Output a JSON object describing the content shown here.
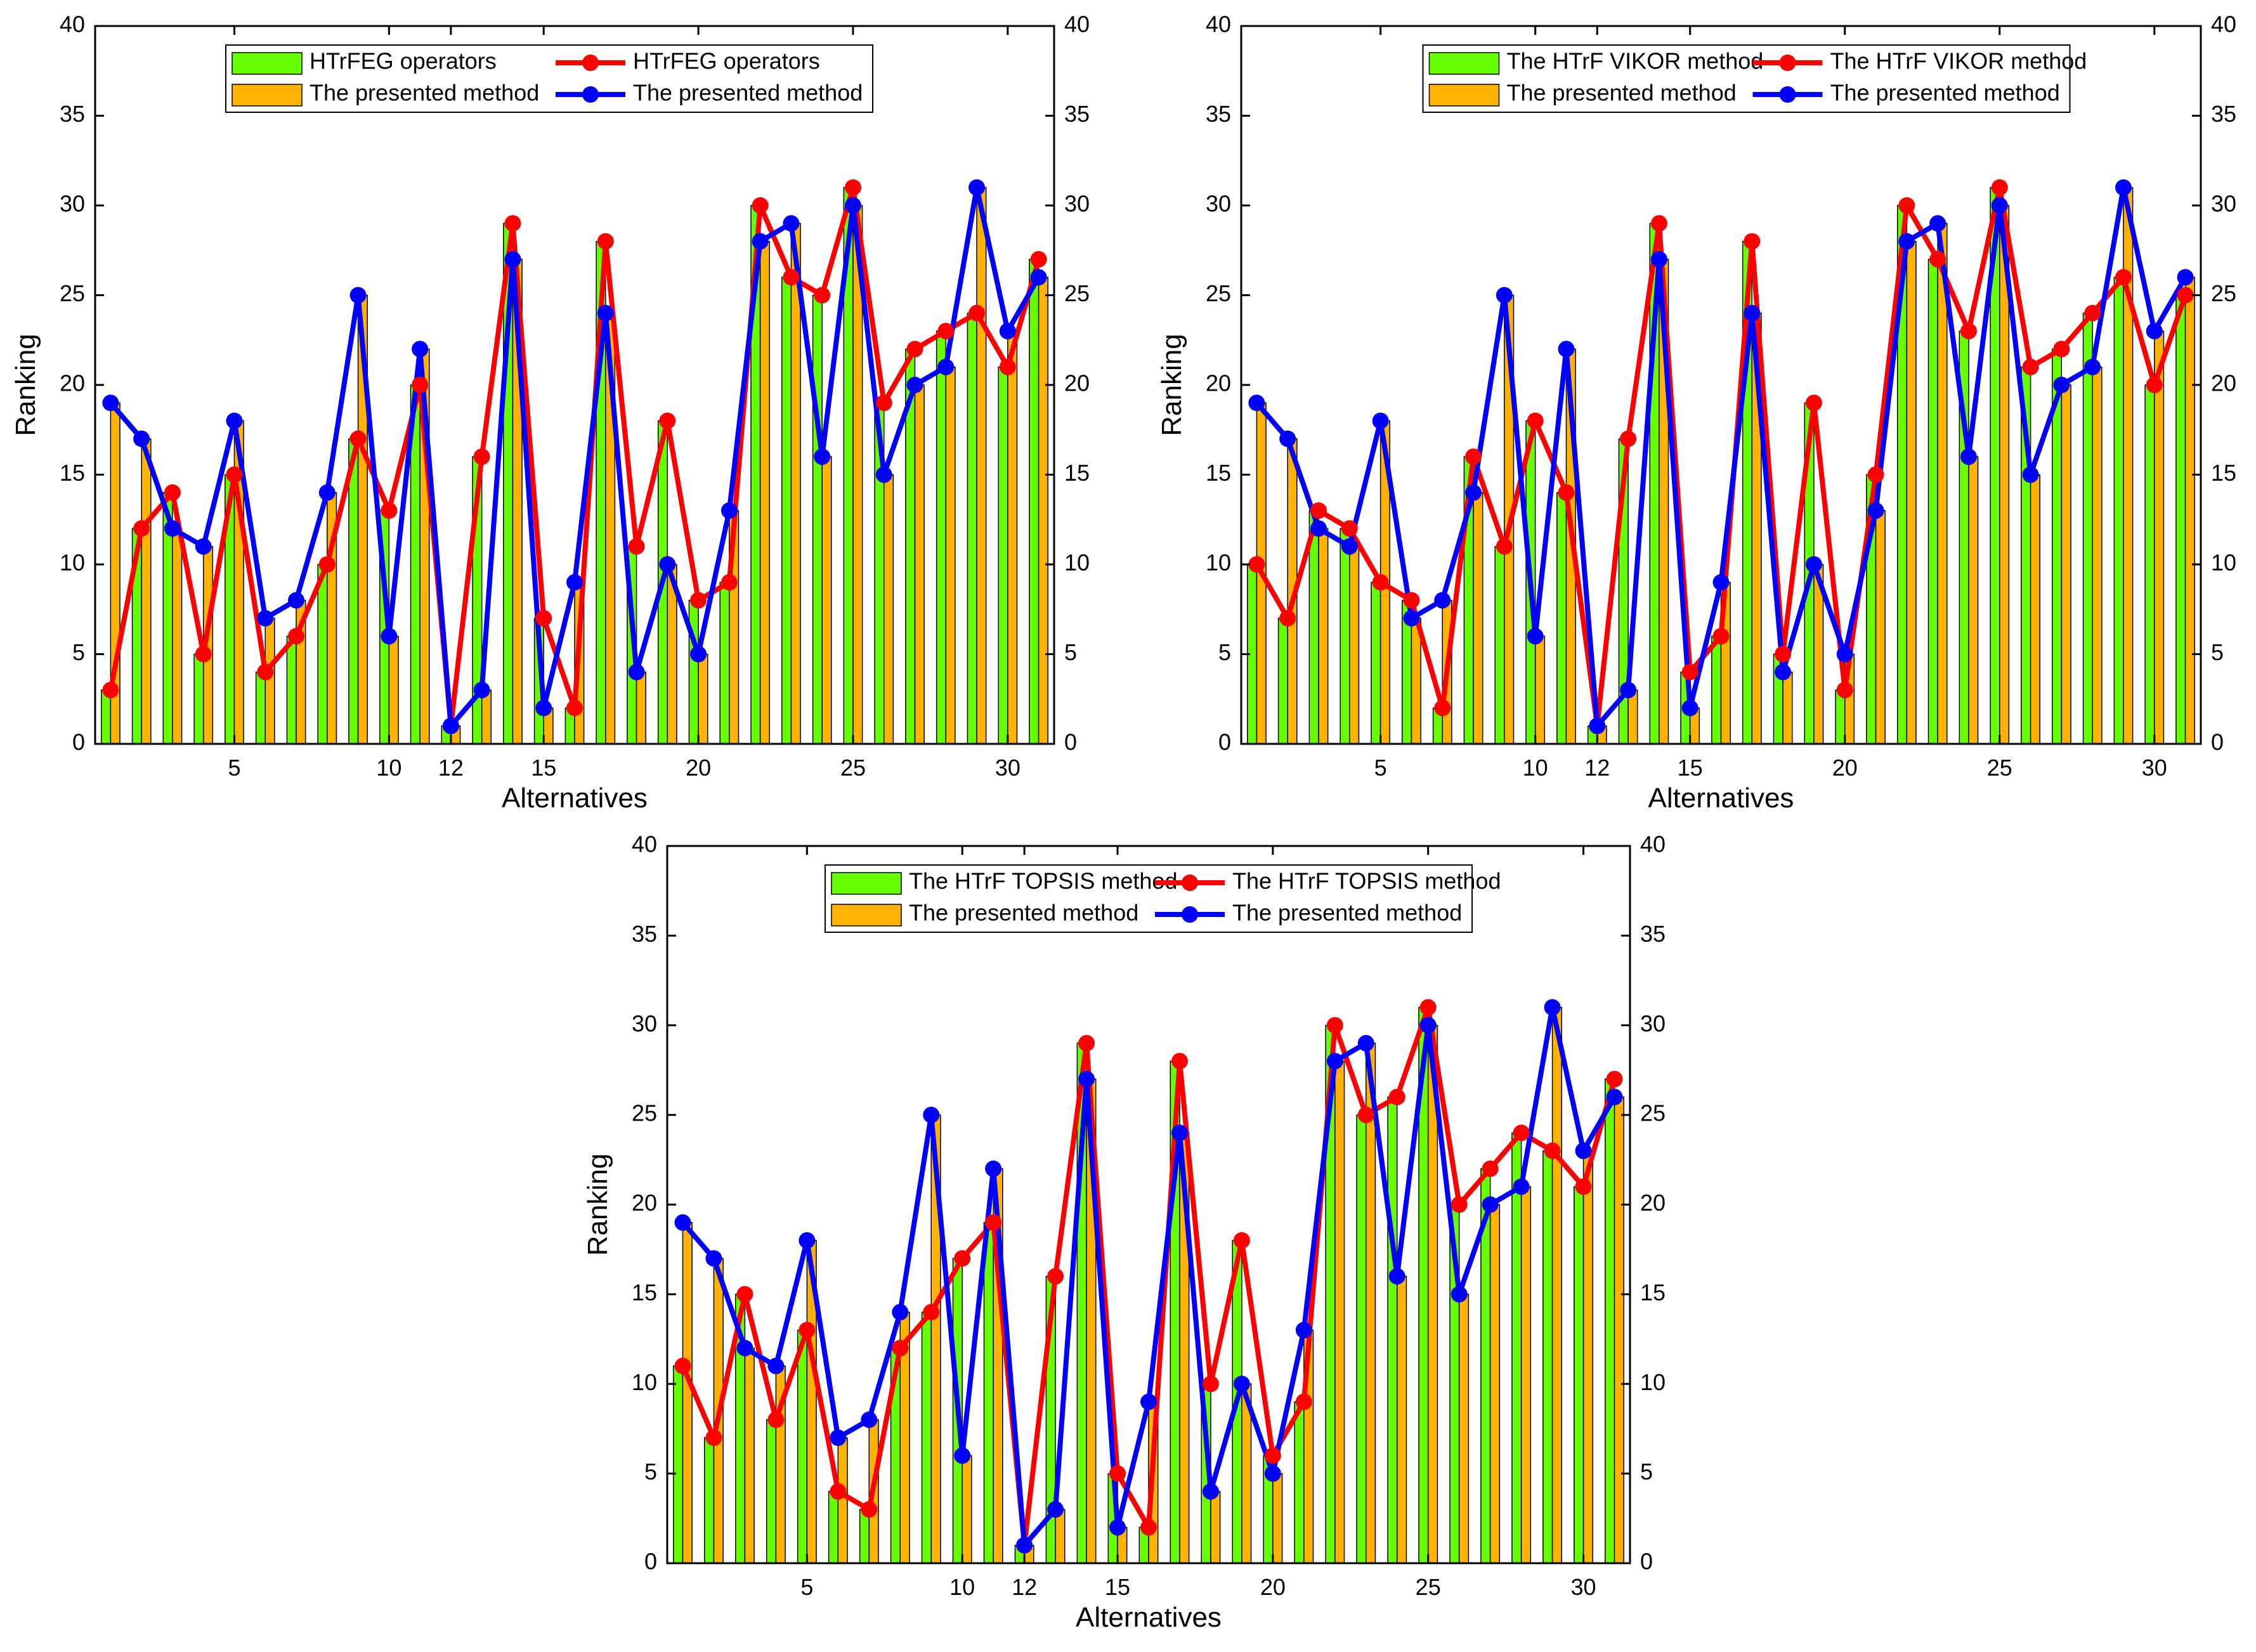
{
  "colors": {
    "bar_a": "#66ff00",
    "bar_b": "#ffb300",
    "line_a": "#ff0000",
    "line_b": "#0000ff",
    "axis": "#000000"
  },
  "chart_data": [
    {
      "type": "bar+line",
      "xlabel": "Alternatives",
      "ylabel": "Ranking",
      "ylim": [
        0,
        40
      ],
      "yticks": [
        "0",
        "5",
        "10",
        "15",
        "20",
        "25",
        "30",
        "35",
        "40"
      ],
      "xticks": [
        {
          "x": 5,
          "label": "5"
        },
        {
          "x": 10,
          "label": "10"
        },
        {
          "x": 12,
          "label": "12"
        },
        {
          "x": 15,
          "label": "15"
        },
        {
          "x": 20,
          "label": "20"
        },
        {
          "x": 25,
          "label": "25"
        },
        {
          "x": 30,
          "label": "30"
        }
      ],
      "x": [
        1,
        2,
        3,
        4,
        5,
        6,
        7,
        8,
        9,
        10,
        11,
        12,
        13,
        14,
        15,
        16,
        17,
        18,
        19,
        20,
        21,
        22,
        23,
        24,
        25,
        26,
        27,
        28,
        29,
        30,
        31
      ],
      "legend": {
        "bar_a": "HTrFEG operators",
        "bar_b": "The presented method",
        "line_a": "HTrFEG operators",
        "line_b": "The presented method"
      },
      "series": [
        {
          "name": "HTrFEG operators",
          "kind": "bar",
          "color": "bar_a",
          "values": [
            3,
            12,
            14,
            5,
            15,
            4,
            6,
            10,
            17,
            13,
            20,
            1,
            16,
            29,
            7,
            2,
            28,
            11,
            18,
            8,
            9,
            30,
            26,
            25,
            31,
            19,
            22,
            23,
            24,
            21,
            27
          ]
        },
        {
          "name": "The presented method",
          "kind": "bar",
          "color": "bar_b",
          "values": [
            19,
            17,
            12,
            11,
            18,
            7,
            8,
            14,
            25,
            6,
            22,
            1,
            3,
            27,
            2,
            9,
            24,
            4,
            10,
            5,
            13,
            28,
            29,
            16,
            30,
            15,
            20,
            21,
            31,
            23,
            26
          ]
        },
        {
          "name": "HTrFEG operators",
          "kind": "line",
          "color": "line_a",
          "values": [
            3,
            12,
            14,
            5,
            15,
            4,
            6,
            10,
            17,
            13,
            20,
            1,
            16,
            29,
            7,
            2,
            28,
            11,
            18,
            8,
            9,
            30,
            26,
            25,
            31,
            19,
            22,
            23,
            24,
            21,
            27
          ]
        },
        {
          "name": "The presented method",
          "kind": "line",
          "color": "line_b",
          "values": [
            19,
            17,
            12,
            11,
            18,
            7,
            8,
            14,
            25,
            6,
            22,
            1,
            3,
            27,
            2,
            9,
            24,
            4,
            10,
            5,
            13,
            28,
            29,
            16,
            30,
            15,
            20,
            21,
            31,
            23,
            26
          ]
        }
      ]
    },
    {
      "type": "bar+line",
      "xlabel": "Alternatives",
      "ylabel": "Ranking",
      "ylim": [
        0,
        40
      ],
      "yticks": [
        "0",
        "5",
        "10",
        "15",
        "20",
        "25",
        "30",
        "35",
        "40"
      ],
      "xticks": [
        {
          "x": 5,
          "label": "5"
        },
        {
          "x": 10,
          "label": "10"
        },
        {
          "x": 12,
          "label": "12"
        },
        {
          "x": 15,
          "label": "15"
        },
        {
          "x": 20,
          "label": "20"
        },
        {
          "x": 25,
          "label": "25"
        },
        {
          "x": 30,
          "label": "30"
        }
      ],
      "x": [
        1,
        2,
        3,
        4,
        5,
        6,
        7,
        8,
        9,
        10,
        11,
        12,
        13,
        14,
        15,
        16,
        17,
        18,
        19,
        20,
        21,
        22,
        23,
        24,
        25,
        26,
        27,
        28,
        29,
        30,
        31
      ],
      "legend": {
        "bar_a": "The HTrF VIKOR method",
        "bar_b": "The presented method",
        "line_a": "The HTrF VIKOR method",
        "line_b": "The presented method"
      },
      "series": [
        {
          "name": "The HTrF VIKOR method",
          "kind": "bar",
          "color": "bar_a",
          "values": [
            10,
            7,
            13,
            12,
            9,
            8,
            2,
            16,
            11,
            18,
            14,
            1,
            17,
            29,
            4,
            6,
            28,
            5,
            19,
            3,
            15,
            30,
            27,
            23,
            31,
            21,
            22,
            24,
            26,
            20,
            25
          ]
        },
        {
          "name": "The presented method",
          "kind": "bar",
          "color": "bar_b",
          "values": [
            19,
            17,
            12,
            11,
            18,
            7,
            8,
            14,
            25,
            6,
            22,
            1,
            3,
            27,
            2,
            9,
            24,
            4,
            10,
            5,
            13,
            28,
            29,
            16,
            30,
            15,
            20,
            21,
            31,
            23,
            26
          ]
        },
        {
          "name": "The HTrF VIKOR method",
          "kind": "line",
          "color": "line_a",
          "values": [
            10,
            7,
            13,
            12,
            9,
            8,
            2,
            16,
            11,
            18,
            14,
            1,
            17,
            29,
            4,
            6,
            28,
            5,
            19,
            3,
            15,
            30,
            27,
            23,
            31,
            21,
            22,
            24,
            26,
            20,
            25
          ]
        },
        {
          "name": "The presented method",
          "kind": "line",
          "color": "line_b",
          "values": [
            19,
            17,
            12,
            11,
            18,
            7,
            8,
            14,
            25,
            6,
            22,
            1,
            3,
            27,
            2,
            9,
            24,
            4,
            10,
            5,
            13,
            28,
            29,
            16,
            30,
            15,
            20,
            21,
            31,
            23,
            26
          ]
        }
      ]
    },
    {
      "type": "bar+line",
      "xlabel": "Alternatives",
      "ylabel": "Ranking",
      "ylim": [
        0,
        40
      ],
      "yticks": [
        "0",
        "5",
        "10",
        "15",
        "20",
        "25",
        "30",
        "35",
        "40"
      ],
      "xticks": [
        {
          "x": 5,
          "label": "5"
        },
        {
          "x": 10,
          "label": "10"
        },
        {
          "x": 12,
          "label": "12"
        },
        {
          "x": 15,
          "label": "15"
        },
        {
          "x": 20,
          "label": "20"
        },
        {
          "x": 25,
          "label": "25"
        },
        {
          "x": 30,
          "label": "30"
        }
      ],
      "x": [
        1,
        2,
        3,
        4,
        5,
        6,
        7,
        8,
        9,
        10,
        11,
        12,
        13,
        14,
        15,
        16,
        17,
        18,
        19,
        20,
        21,
        22,
        23,
        24,
        25,
        26,
        27,
        28,
        29,
        30,
        31
      ],
      "legend": {
        "bar_a": "The HTrF TOPSIS method",
        "bar_b": "The presented method",
        "line_a": "The HTrF TOPSIS method",
        "line_b": "The presented method"
      },
      "series": [
        {
          "name": "The HTrF TOPSIS method",
          "kind": "bar",
          "color": "bar_a",
          "values": [
            11,
            7,
            15,
            8,
            13,
            4,
            3,
            12,
            14,
            17,
            19,
            1,
            16,
            29,
            5,
            2,
            28,
            10,
            18,
            6,
            9,
            30,
            25,
            26,
            31,
            20,
            22,
            24,
            23,
            21,
            27
          ]
        },
        {
          "name": "The presented method",
          "kind": "bar",
          "color": "bar_b",
          "values": [
            19,
            17,
            12,
            11,
            18,
            7,
            8,
            14,
            25,
            6,
            22,
            1,
            3,
            27,
            2,
            9,
            24,
            4,
            10,
            5,
            13,
            28,
            29,
            16,
            30,
            15,
            20,
            21,
            31,
            23,
            26
          ]
        },
        {
          "name": "The HTrF TOPSIS method",
          "kind": "line",
          "color": "line_a",
          "values": [
            11,
            7,
            15,
            8,
            13,
            4,
            3,
            12,
            14,
            17,
            19,
            1,
            16,
            29,
            5,
            2,
            28,
            10,
            18,
            6,
            9,
            30,
            25,
            26,
            31,
            20,
            22,
            24,
            23,
            21,
            27
          ]
        },
        {
          "name": "The presented method",
          "kind": "line",
          "color": "line_b",
          "values": [
            19,
            17,
            12,
            11,
            18,
            7,
            8,
            14,
            25,
            6,
            22,
            1,
            3,
            27,
            2,
            9,
            24,
            4,
            10,
            5,
            13,
            28,
            29,
            16,
            30,
            15,
            20,
            21,
            31,
            23,
            26
          ]
        }
      ]
    }
  ]
}
